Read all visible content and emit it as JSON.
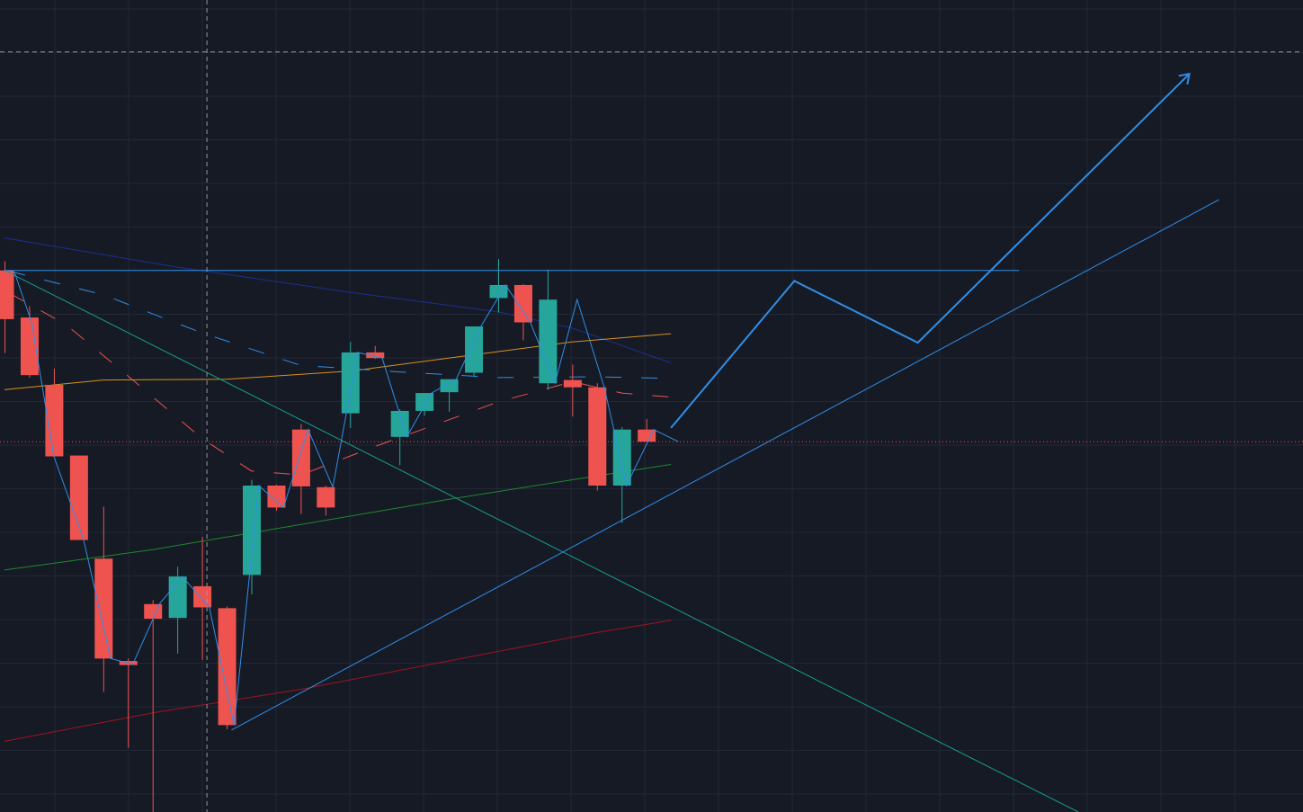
{
  "colors": {
    "background": "#161a25",
    "grid": "#232836",
    "up": "#26a69a",
    "down": "#ef5350",
    "trendline": "#2f8fe8",
    "crosshair": "#9598a1",
    "last_price": "#ef5350",
    "ma_navy": "#1f2e8f",
    "ma_orange": "#d9911e",
    "ma_green": "#1d8a2e",
    "ma_darkred": "#a0141e",
    "diagonal_teal": "#179e8b",
    "cloud_blue": "#2f8fe8",
    "cloud_red": "#ef5350"
  },
  "chart_data": {
    "type": "candlestick",
    "title": "",
    "xlabel": "",
    "ylabel": "",
    "ylim": [
      0,
      100
    ],
    "x_count": 54,
    "grid": true,
    "candles": [
      {
        "o": 66.7,
        "h": 67.8,
        "l": 56.5,
        "c": 60.7
      },
      {
        "o": 60.9,
        "h": 62.3,
        "l": 53.5,
        "c": 53.8
      },
      {
        "o": 52.6,
        "h": 54.6,
        "l": 43.8,
        "c": 43.8
      },
      {
        "o": 43.9,
        "h": 43.9,
        "l": 33.6,
        "c": 33.5
      },
      {
        "o": 31.2,
        "h": 37.6,
        "l": 14.8,
        "c": 18.9
      },
      {
        "o": 18.6,
        "h": 18.9,
        "l": 7.9,
        "c": 18.1
      },
      {
        "o": 25.6,
        "h": 26.1,
        "l": 0.0,
        "c": 23.8
      },
      {
        "o": 23.9,
        "h": 30.2,
        "l": 19.5,
        "c": 29.0
      },
      {
        "o": 27.8,
        "h": 33.9,
        "l": 18.7,
        "c": 25.2
      },
      {
        "o": 25.1,
        "h": 25.3,
        "l": 10.2,
        "c": 10.7
      },
      {
        "o": 29.2,
        "h": 40.9,
        "l": 26.8,
        "c": 40.2
      },
      {
        "o": 40.2,
        "h": 40.3,
        "l": 37.1,
        "c": 37.5
      },
      {
        "o": 47.1,
        "h": 47.8,
        "l": 36.7,
        "c": 40.1
      },
      {
        "o": 40.0,
        "h": 40.2,
        "l": 36.5,
        "c": 37.5
      },
      {
        "o": 49.1,
        "h": 57.9,
        "l": 47.3,
        "c": 56.6
      },
      {
        "o": 56.6,
        "h": 57.4,
        "l": 55.8,
        "c": 55.9
      },
      {
        "o": 46.2,
        "h": 49.6,
        "l": 42.7,
        "c": 49.4
      },
      {
        "o": 49.4,
        "h": 51.6,
        "l": 48.8,
        "c": 51.6
      },
      {
        "o": 51.7,
        "h": 53.2,
        "l": 49.3,
        "c": 53.3
      },
      {
        "o": 54.1,
        "h": 59.8,
        "l": 53.7,
        "c": 59.8
      },
      {
        "o": 63.3,
        "h": 68.1,
        "l": 61.5,
        "c": 64.9
      },
      {
        "o": 64.9,
        "h": 65.0,
        "l": 58.1,
        "c": 60.3
      },
      {
        "o": 52.8,
        "h": 66.8,
        "l": 52.0,
        "c": 63.1
      },
      {
        "o": 53.2,
        "h": 55.1,
        "l": 48.7,
        "c": 52.3
      },
      {
        "o": 52.3,
        "h": 52.8,
        "l": 39.6,
        "c": 40.2
      },
      {
        "o": 40.2,
        "h": 47.4,
        "l": 35.6,
        "c": 47.1
      },
      {
        "o": 47.1,
        "h": 48.4,
        "l": 45.6,
        "c": 45.6
      }
    ],
    "horizontal_line": {
      "y": 66.7,
      "x_from": 0,
      "x_to": 41
    },
    "last_price_line": {
      "y": 45.6
    },
    "crosshair": {
      "x": 8.2,
      "y": 93.6
    },
    "moving_averages": [
      {
        "name": "",
        "color_key": "ma_navy",
        "points": [
          [
            0,
            70.7
          ],
          [
            7,
            67.1
          ],
          [
            14,
            64.0
          ],
          [
            20,
            61.6
          ],
          [
            23,
            59.6
          ],
          [
            27,
            55.3
          ]
        ]
      },
      {
        "name": "",
        "color_key": "ma_orange",
        "points": [
          [
            0,
            52.0
          ],
          [
            4,
            53.2
          ],
          [
            9,
            53.3
          ],
          [
            14,
            54.3
          ],
          [
            19,
            56.3
          ],
          [
            23,
            57.9
          ],
          [
            27,
            58.9
          ]
        ]
      },
      {
        "name": "",
        "color_key": "ma_green",
        "points": [
          [
            0,
            29.8
          ],
          [
            6,
            32.3
          ],
          [
            12,
            35.4
          ],
          [
            18,
            38.5
          ],
          [
            24,
            41.4
          ],
          [
            27,
            42.8
          ]
        ]
      },
      {
        "name": "",
        "color_key": "ma_darkred",
        "points": [
          [
            0,
            8.7
          ],
          [
            6,
            12.2
          ],
          [
            12,
            15.1
          ],
          [
            18,
            18.6
          ],
          [
            24,
            22.1
          ],
          [
            27,
            23.6
          ]
        ]
      }
    ],
    "cloud_dashes": [
      {
        "color_key": "cloud_blue",
        "points": [
          [
            0.2,
            66.6
          ],
          [
            4.0,
            63.7
          ],
          [
            8.0,
            59.0
          ],
          [
            12.0,
            55.0
          ],
          [
            16.0,
            54.2
          ],
          [
            20.0,
            53.5
          ],
          [
            24.0,
            53.6
          ],
          [
            27.0,
            53.4
          ]
        ]
      },
      {
        "color_key": "cloud_red",
        "points": [
          [
            0.2,
            63.9
          ],
          [
            2.5,
            60.0
          ],
          [
            5.0,
            53.7
          ],
          [
            8.0,
            46.0
          ],
          [
            10.0,
            42.0
          ],
          [
            12.0,
            41.5
          ],
          [
            15.0,
            45.0
          ],
          [
            20.0,
            50.5
          ],
          [
            23.0,
            53.0
          ],
          [
            25.0,
            51.6
          ],
          [
            27.0,
            51.1
          ]
        ]
      }
    ],
    "trendlines": [
      {
        "color_key": "trendline",
        "width": 1,
        "points": [
          [
            9.2,
            10.1
          ],
          [
            49.2,
            75.4
          ]
        ]
      },
      {
        "color_key": "diagonal_teal",
        "width": 1,
        "points": [
          [
            0,
            66.7
          ],
          [
            43.5,
            0.0
          ]
        ]
      },
      {
        "color_key": "trendline",
        "width": 1,
        "points": [
          [
            0,
            66.7
          ],
          [
            41.1,
            66.7
          ]
        ]
      }
    ],
    "projection": {
      "color_key": "trendline",
      "points": [
        [
          27.0,
          47.3
        ],
        [
          32.0,
          65.4
        ],
        [
          37.0,
          57.8
        ],
        [
          48.0,
          90.9
        ]
      ],
      "arrow": true
    },
    "zigzag": {
      "color_key": "trendline",
      "points": [
        [
          0.4,
          66.5
        ],
        [
          1.1,
          60.3
        ],
        [
          2.0,
          43.8
        ],
        [
          3.2,
          33.6
        ],
        [
          4.3,
          18.9
        ],
        [
          5.2,
          18.2
        ],
        [
          6.3,
          25.7
        ],
        [
          7.2,
          29.0
        ],
        [
          8.3,
          25.2
        ],
        [
          9.3,
          10.7
        ],
        [
          10.3,
          40.2
        ],
        [
          11.3,
          37.5
        ],
        [
          12.3,
          47.1
        ],
        [
          13.3,
          40.0
        ],
        [
          14.3,
          56.6
        ],
        [
          15.3,
          55.9
        ],
        [
          16.3,
          46.2
        ],
        [
          17.3,
          51.6
        ],
        [
          18.3,
          53.3
        ],
        [
          19.3,
          59.8
        ],
        [
          20.3,
          64.9
        ],
        [
          21.3,
          60.3
        ],
        [
          22.3,
          52.8
        ],
        [
          23.2,
          63.1
        ],
        [
          24.3,
          52.3
        ],
        [
          25.2,
          40.2
        ],
        [
          26.3,
          47.1
        ],
        [
          27.3,
          45.6
        ]
      ]
    }
  }
}
